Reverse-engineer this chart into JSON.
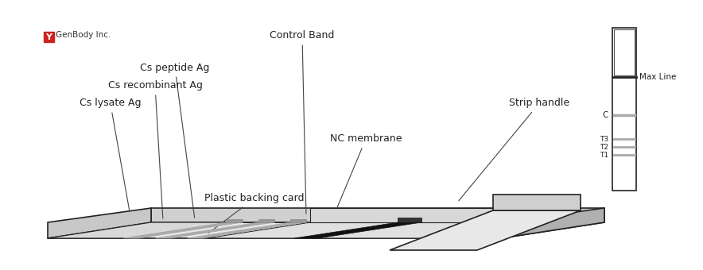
{
  "bg_color": "#ffffff",
  "strip_color": "#f0f0f0",
  "strip_edge_color": "#222222",
  "band_dark": "#111111",
  "band_gray": "#aaaaaa",
  "band_light": "#cccccc",
  "logo_text": "GenBody Inc.",
  "logo_color": "#cc2222",
  "labels": {
    "control_band": "Control Band",
    "cs_peptide": "Cs peptide Ag",
    "cs_recombinant": "Cs recombinant Ag",
    "cs_lysate": "Cs lysate Ag",
    "nc_membrane": "NC membrane",
    "plastic_backing": "Plastic backing card",
    "strip_handle": "Strip handle",
    "max_line": "Max Line",
    "C": "C",
    "T3": "T3",
    "T2": "T2",
    "T1": "T1"
  },
  "font_size": 9,
  "font_size_small": 7.5
}
